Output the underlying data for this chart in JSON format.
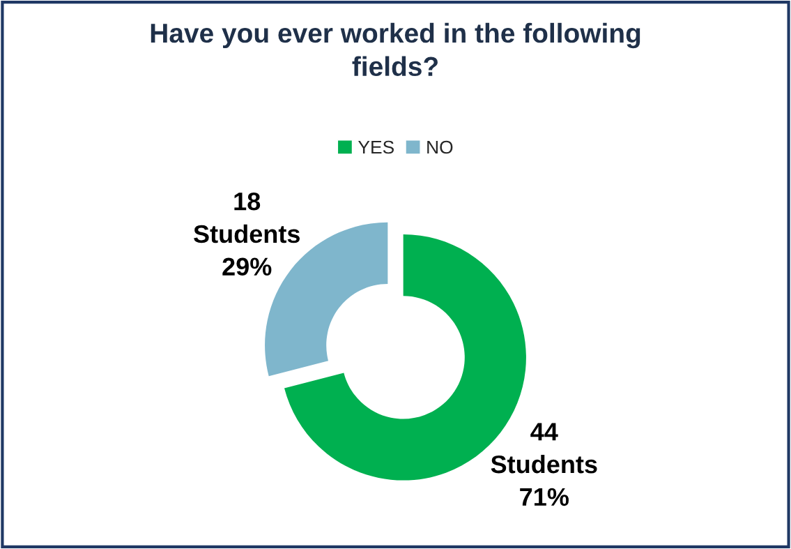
{
  "chart_data": {
    "type": "donut",
    "title": "Have you ever worked in the following\nfields?",
    "categories": [
      "YES",
      "NO"
    ],
    "values": [
      44,
      18
    ],
    "colors": [
      "#00b050",
      "#7fb6cc"
    ],
    "value_labels": [
      "44\nStudents\n71%",
      "18\nStudents\n29%"
    ],
    "legend": "top"
  }
}
